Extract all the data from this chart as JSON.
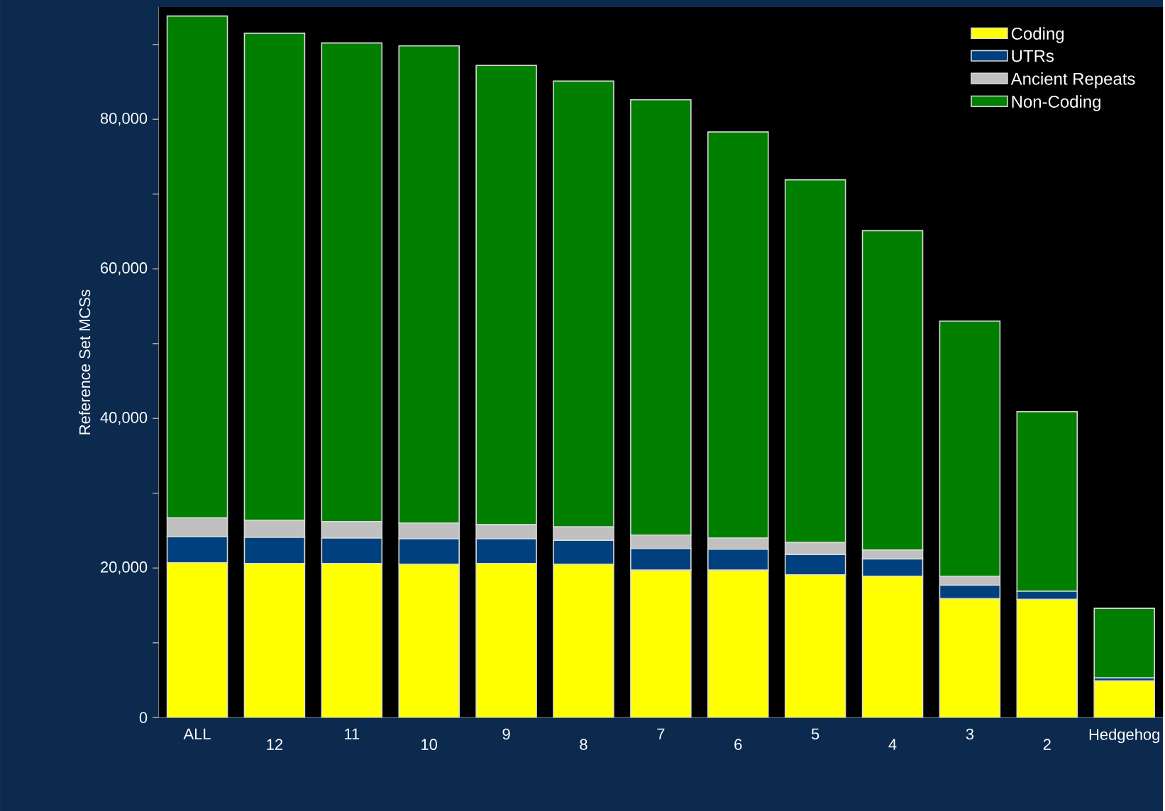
{
  "chart_data": {
    "type": "bar",
    "stacked": true,
    "ylabel": "Reference Set MCSs",
    "categories": [
      "ALL",
      "12",
      "11",
      "10",
      "9",
      "8",
      "7",
      "6",
      "5",
      "4",
      "3",
      "2",
      "Hedgehog"
    ],
    "series": [
      {
        "name": "Coding",
        "color": "#ffff00",
        "values": [
          20700,
          20600,
          20600,
          20500,
          20600,
          20500,
          19700,
          19700,
          19100,
          18900,
          15900,
          15800,
          4900
        ]
      },
      {
        "name": "UTRs",
        "color": "#00407f",
        "values": [
          3500,
          3500,
          3400,
          3400,
          3300,
          3200,
          2900,
          2800,
          2700,
          2300,
          1800,
          1100,
          400
        ]
      },
      {
        "name": "Ancient Repeats",
        "color": "#c0c0c0",
        "values": [
          2500,
          2300,
          2200,
          2100,
          1900,
          1800,
          1800,
          1500,
          1600,
          1200,
          1200,
          0,
          0
        ]
      },
      {
        "name": "Non-Coding",
        "color": "#007f00",
        "values": [
          67100,
          65100,
          64000,
          63800,
          61400,
          59600,
          58200,
          54300,
          48500,
          42700,
          34100,
          24000,
          9300
        ]
      }
    ],
    "ylim": [
      0,
      95000
    ],
    "yticks": [
      0,
      {
        "value": 10000,
        "label": null
      },
      {
        "value": 20000,
        "label": "20,000"
      },
      {
        "value": 30000,
        "label": null
      },
      {
        "value": 40000,
        "label": "40,000"
      },
      {
        "value": 50000,
        "label": null
      },
      {
        "value": 60000,
        "label": "60,000"
      },
      {
        "value": 70000,
        "label": null
      },
      {
        "value": 80000,
        "label": "80,000"
      },
      {
        "value": 90000,
        "label": null
      }
    ],
    "legend": "top right"
  }
}
